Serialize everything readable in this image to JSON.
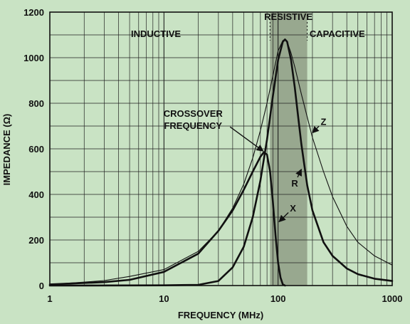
{
  "chart_data": {
    "type": "line",
    "xlabel": "FREQUENCY (MHz)",
    "ylabel": "IMPEDANCE (Ω)",
    "x_scale": "log",
    "xlim": [
      1,
      1000
    ],
    "ylim": [
      0,
      1200
    ],
    "x_ticks": [
      1,
      10,
      100,
      1000
    ],
    "y_ticks": [
      0,
      200,
      400,
      600,
      800,
      1000,
      1200
    ],
    "grid": true,
    "shaded_region": {
      "label": "RESISTIVE",
      "x_range": [
        85,
        180
      ]
    },
    "region_labels": [
      {
        "id": "inductive",
        "text": "INDUCTIVE",
        "x": 8.5,
        "y": 1090
      },
      {
        "id": "resistive",
        "text": "RESISTIVE",
        "x": 123,
        "y": 1165
      },
      {
        "id": "capacitive",
        "text": "CAPACITIVE",
        "x": 330,
        "y": 1090
      }
    ],
    "series": [
      {
        "name": "Z",
        "weight": "thin",
        "x": [
          1,
          2,
          3,
          5,
          10,
          20,
          30,
          40,
          50,
          60,
          70,
          80,
          90,
          100,
          110,
          115,
          120,
          130,
          140,
          160,
          180,
          200,
          250,
          300,
          400,
          500,
          700,
          1000
        ],
        "y": [
          5,
          15,
          22,
          40,
          70,
          150,
          240,
          340,
          445,
          560,
          680,
          800,
          920,
          1030,
          1075,
          1080,
          1070,
          1020,
          960,
          840,
          740,
          650,
          500,
          390,
          260,
          190,
          130,
          90
        ]
      },
      {
        "name": "R",
        "weight": "thick",
        "x": [
          1,
          10,
          20,
          30,
          40,
          50,
          60,
          70,
          80,
          90,
          100,
          110,
          115,
          120,
          130,
          140,
          150,
          160,
          180,
          200,
          250,
          300,
          400,
          500,
          700,
          1000
        ],
        "y": [
          0,
          1,
          3,
          20,
          80,
          170,
          300,
          460,
          640,
          830,
          990,
          1070,
          1080,
          1070,
          990,
          870,
          740,
          620,
          440,
          330,
          190,
          130,
          75,
          50,
          30,
          20
        ]
      },
      {
        "name": "X",
        "weight": "thick",
        "x": [
          1,
          3,
          5,
          10,
          20,
          30,
          40,
          50,
          60,
          70,
          75,
          80,
          85,
          90,
          95,
          100,
          105,
          110,
          115
        ],
        "y": [
          5,
          15,
          25,
          60,
          140,
          240,
          330,
          420,
          500,
          565,
          585,
          575,
          500,
          370,
          220,
          100,
          35,
          5,
          0
        ]
      }
    ],
    "annotations": [
      {
        "id": "crossover",
        "lines": [
          "CROSSOVER",
          "FREQUENCY"
        ],
        "x": 18,
        "y": 740,
        "to": [
          74,
          590
        ]
      },
      {
        "id": "z",
        "text": "Z",
        "x": 250,
        "y": 720,
        "to": [
          200,
          670
        ]
      },
      {
        "id": "r",
        "text": "R",
        "x": 140,
        "y": 450,
        "to": [
          160,
          510
        ]
      },
      {
        "id": "x",
        "text": "X",
        "x": 135,
        "y": 340,
        "to": [
          102,
          280
        ]
      }
    ]
  }
}
